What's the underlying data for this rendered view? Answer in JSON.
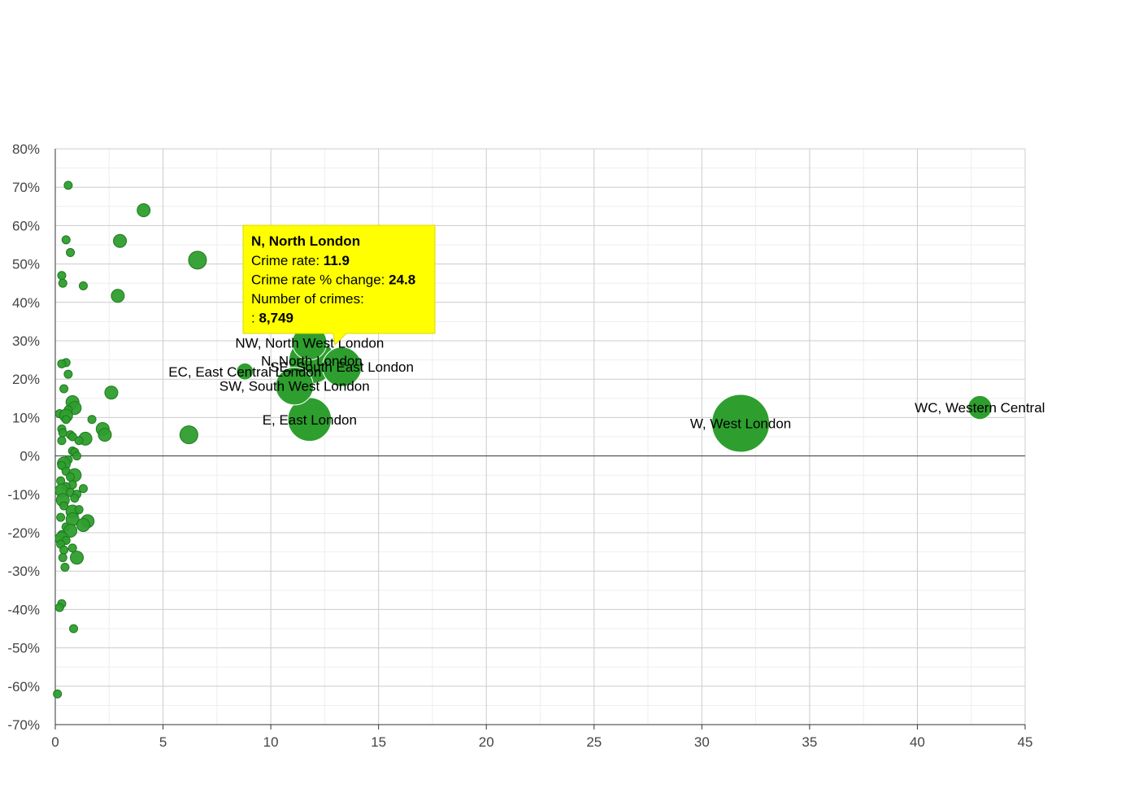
{
  "chart_data": {
    "type": "scatter",
    "bubble": true,
    "xlim": [
      0,
      45
    ],
    "ylim": [
      -70,
      80
    ],
    "x_ticks": [
      "0",
      "5",
      "10",
      "15",
      "20",
      "25",
      "30",
      "35",
      "40",
      "45"
    ],
    "x_tick_values": [
      0,
      5,
      10,
      15,
      20,
      25,
      30,
      35,
      40,
      45
    ],
    "y_ticks": [
      "80%",
      "70%",
      "60%",
      "50%",
      "40%",
      "30%",
      "20%",
      "10%",
      "0%",
      "-10%",
      "-20%",
      "-30%",
      "-40%",
      "-50%",
      "-60%",
      "-70%"
    ],
    "y_tick_values": [
      80,
      70,
      60,
      50,
      40,
      30,
      20,
      10,
      0,
      -10,
      -20,
      -30,
      -40,
      -50,
      -60,
      -70
    ],
    "grid": true,
    "colors": {
      "bubble": "#2e9e2e",
      "bubble_stroke": "#1e7a1e",
      "tooltip_bg": "#ffff00",
      "grid": "#cccccc",
      "minor_grid": "#eeeeee"
    },
    "labeled_points": [
      {
        "label": "WC, Western Central",
        "x": 42.9,
        "y": 12.6,
        "crimes": 2400
      },
      {
        "label": "W, West London",
        "x": 31.8,
        "y": 8.5,
        "crimes": 14000
      },
      {
        "label": "NW, North West London",
        "x": 11.8,
        "y": 29.5,
        "crimes": 5000
      },
      {
        "label": "N, North London",
        "x": 11.9,
        "y": 24.8,
        "crimes": 8749
      },
      {
        "label": "SE, South East London",
        "x": 13.3,
        "y": 23.2,
        "crimes": 6500
      },
      {
        "label": "EC, East Central London",
        "x": 8.8,
        "y": 22.0,
        "crimes": 1200
      },
      {
        "label": "SW, South West London",
        "x": 11.1,
        "y": 18.2,
        "crimes": 6000
      },
      {
        "label": "E, East London",
        "x": 11.8,
        "y": 9.5,
        "crimes": 8000
      }
    ],
    "points": [
      {
        "x": 0.6,
        "y": 70.5,
        "s": 1
      },
      {
        "x": 4.1,
        "y": 64.0,
        "s": 2
      },
      {
        "x": 3.0,
        "y": 56.0,
        "s": 2
      },
      {
        "x": 0.5,
        "y": 56.3,
        "s": 1
      },
      {
        "x": 0.7,
        "y": 53.0,
        "s": 1
      },
      {
        "x": 6.6,
        "y": 51.0,
        "s": 3
      },
      {
        "x": 0.3,
        "y": 47.0,
        "s": 1
      },
      {
        "x": 0.35,
        "y": 45.0,
        "s": 1
      },
      {
        "x": 1.3,
        "y": 44.3,
        "s": 1
      },
      {
        "x": 2.9,
        "y": 41.7,
        "s": 2
      },
      {
        "x": 0.5,
        "y": 24.3,
        "s": 1
      },
      {
        "x": 0.3,
        "y": 24.0,
        "s": 1
      },
      {
        "x": 0.6,
        "y": 21.3,
        "s": 1
      },
      {
        "x": 0.4,
        "y": 17.5,
        "s": 1
      },
      {
        "x": 2.6,
        "y": 16.5,
        "s": 2
      },
      {
        "x": 0.8,
        "y": 14.0,
        "s": 2
      },
      {
        "x": 0.9,
        "y": 12.5,
        "s": 2
      },
      {
        "x": 0.6,
        "y": 12.0,
        "s": 1
      },
      {
        "x": 0.2,
        "y": 11.0,
        "s": 1
      },
      {
        "x": 0.5,
        "y": 10.5,
        "s": 2
      },
      {
        "x": 0.5,
        "y": 9.5,
        "s": 1
      },
      {
        "x": 1.7,
        "y": 9.5,
        "s": 1
      },
      {
        "x": 2.2,
        "y": 7.0,
        "s": 2
      },
      {
        "x": 0.3,
        "y": 7.0,
        "s": 1
      },
      {
        "x": 0.35,
        "y": 6.0,
        "s": 1
      },
      {
        "x": 6.2,
        "y": 5.5,
        "s": 3
      },
      {
        "x": 0.7,
        "y": 5.5,
        "s": 1
      },
      {
        "x": 2.3,
        "y": 5.5,
        "s": 2
      },
      {
        "x": 0.8,
        "y": 5.0,
        "s": 1
      },
      {
        "x": 1.4,
        "y": 4.5,
        "s": 2
      },
      {
        "x": 1.1,
        "y": 4.0,
        "s": 1
      },
      {
        "x": 0.3,
        "y": 4.0,
        "s": 1
      },
      {
        "x": 0.8,
        "y": 1.3,
        "s": 1
      },
      {
        "x": 0.9,
        "y": 1.0,
        "s": 1
      },
      {
        "x": 1.0,
        "y": 0.0,
        "s": 1
      },
      {
        "x": 0.6,
        "y": -1.0,
        "s": 1
      },
      {
        "x": 0.4,
        "y": -2.0,
        "s": 2
      },
      {
        "x": 0.3,
        "y": -2.5,
        "s": 1
      },
      {
        "x": 0.5,
        "y": -4.0,
        "s": 1
      },
      {
        "x": 0.9,
        "y": -5.0,
        "s": 2
      },
      {
        "x": 0.7,
        "y": -5.5,
        "s": 1
      },
      {
        "x": 0.25,
        "y": -6.5,
        "s": 1
      },
      {
        "x": 0.8,
        "y": -7.5,
        "s": 1
      },
      {
        "x": 0.5,
        "y": -8.0,
        "s": 1
      },
      {
        "x": 1.3,
        "y": -8.5,
        "s": 1
      },
      {
        "x": 0.3,
        "y": -9.0,
        "s": 2
      },
      {
        "x": 0.7,
        "y": -9.5,
        "s": 1
      },
      {
        "x": 1.0,
        "y": -10.0,
        "s": 1
      },
      {
        "x": 0.9,
        "y": -11.0,
        "s": 1
      },
      {
        "x": 0.35,
        "y": -11.5,
        "s": 2
      },
      {
        "x": 0.4,
        "y": -13.0,
        "s": 1
      },
      {
        "x": 0.8,
        "y": -14.5,
        "s": 2
      },
      {
        "x": 1.1,
        "y": -14.0,
        "s": 1
      },
      {
        "x": 0.25,
        "y": -16.0,
        "s": 1
      },
      {
        "x": 0.8,
        "y": -16.5,
        "s": 2
      },
      {
        "x": 1.5,
        "y": -17.0,
        "s": 2
      },
      {
        "x": 1.3,
        "y": -18.0,
        "s": 2
      },
      {
        "x": 0.5,
        "y": -18.5,
        "s": 1
      },
      {
        "x": 0.7,
        "y": -19.5,
        "s": 2
      },
      {
        "x": 0.3,
        "y": -20.5,
        "s": 1
      },
      {
        "x": 0.3,
        "y": -21.5,
        "s": 2
      },
      {
        "x": 0.5,
        "y": -22.0,
        "s": 1
      },
      {
        "x": 0.25,
        "y": -23.0,
        "s": 1
      },
      {
        "x": 0.8,
        "y": -24.0,
        "s": 1
      },
      {
        "x": 0.4,
        "y": -24.5,
        "s": 1
      },
      {
        "x": 0.35,
        "y": -26.5,
        "s": 1
      },
      {
        "x": 1.0,
        "y": -26.5,
        "s": 2
      },
      {
        "x": 0.45,
        "y": -29.0,
        "s": 1
      },
      {
        "x": 0.3,
        "y": -38.5,
        "s": 1
      },
      {
        "x": 0.2,
        "y": -39.5,
        "s": 1
      },
      {
        "x": 0.85,
        "y": -45.0,
        "s": 1
      },
      {
        "x": 0.1,
        "y": -62.0,
        "s": 1
      }
    ]
  },
  "tooltip": {
    "title": "N, North London",
    "rows": [
      {
        "label": "Crime rate: ",
        "value": "11.9"
      },
      {
        "label": "Crime rate % change: ",
        "value": "24.8"
      },
      {
        "label": "Number of crimes:",
        "value": ""
      },
      {
        "label": ": ",
        "value": "8,749"
      }
    ]
  }
}
